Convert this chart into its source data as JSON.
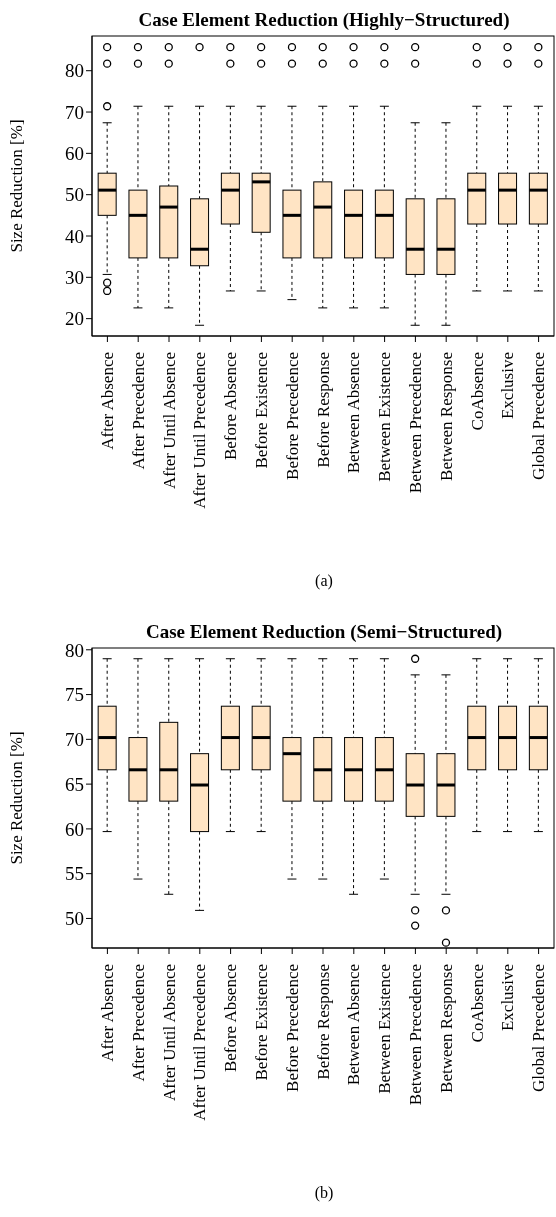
{
  "chart_data": [
    {
      "type": "box",
      "title": "Case Element Reduction (Highly−Structured)",
      "ylabel": "Size Reduction [%]",
      "color": "#ffe4c4",
      "annotations": [
        "(a)"
      ],
      "categories": [
        "After Absence",
        "After Precedence",
        "After Until Absence",
        "After Until Precedence",
        "Before Absence",
        "Before Existence",
        "Before Precedence",
        "Before Response",
        "Between Absence",
        "Between Existence",
        "Between Precedence",
        "Between Response",
        "CoAbsence",
        "Exclusive",
        "Global Precedence"
      ],
      "ylim": [
        15.8,
        88.4
      ],
      "yticks": [
        20,
        30,
        40,
        50,
        60,
        70,
        80
      ],
      "boxes": [
        {
          "low": 30.7,
          "q1": 45.0,
          "median": 51.1,
          "q3": 55.2,
          "high": 67.4,
          "outliers": [
            85.7,
            81.7,
            71.4,
            28.7,
            26.7
          ]
        },
        {
          "low": 22.6,
          "q1": 34.7,
          "median": 45.0,
          "q3": 51.1,
          "high": 71.4,
          "outliers": [
            85.7,
            81.7
          ]
        },
        {
          "low": 22.6,
          "q1": 34.7,
          "median": 47.0,
          "q3": 52.1,
          "high": 71.4,
          "outliers": [
            85.7,
            81.7
          ]
        },
        {
          "low": 18.4,
          "q1": 32.8,
          "median": 36.8,
          "q3": 49.0,
          "high": 71.4,
          "outliers": [
            85.7
          ]
        },
        {
          "low": 26.7,
          "q1": 42.9,
          "median": 51.1,
          "q3": 55.2,
          "high": 71.4,
          "outliers": [
            85.7,
            81.7
          ]
        },
        {
          "low": 26.7,
          "q1": 40.9,
          "median": 53.1,
          "q3": 55.2,
          "high": 71.4,
          "outliers": [
            85.7,
            81.7
          ]
        },
        {
          "low": 24.6,
          "q1": 34.7,
          "median": 45.0,
          "q3": 51.1,
          "high": 71.4,
          "outliers": [
            85.7,
            81.7
          ]
        },
        {
          "low": 22.6,
          "q1": 34.7,
          "median": 47.0,
          "q3": 53.1,
          "high": 71.4,
          "outliers": [
            85.7,
            81.7
          ]
        },
        {
          "low": 22.6,
          "q1": 34.7,
          "median": 45.0,
          "q3": 51.1,
          "high": 71.4,
          "outliers": [
            85.7,
            81.7
          ]
        },
        {
          "low": 22.6,
          "q1": 34.7,
          "median": 45.0,
          "q3": 51.1,
          "high": 71.4,
          "outliers": [
            85.7,
            81.7
          ]
        },
        {
          "low": 18.4,
          "q1": 30.7,
          "median": 36.8,
          "q3": 49.0,
          "high": 67.4,
          "outliers": [
            85.7,
            81.7
          ]
        },
        {
          "low": 18.4,
          "q1": 30.7,
          "median": 36.8,
          "q3": 49.0,
          "high": 67.4
        },
        {
          "low": 26.7,
          "q1": 42.9,
          "median": 51.1,
          "q3": 55.2,
          "high": 71.4,
          "outliers": [
            85.7,
            81.7
          ]
        },
        {
          "low": 26.7,
          "q1": 42.9,
          "median": 51.1,
          "q3": 55.2,
          "high": 71.4,
          "outliers": [
            85.7,
            81.7
          ]
        },
        {
          "low": 26.7,
          "q1": 42.9,
          "median": 51.1,
          "q3": 55.2,
          "high": 71.4,
          "outliers": [
            85.7,
            81.7
          ]
        }
      ]
    },
    {
      "type": "box",
      "title": "Case Element Reduction (Semi−Structured)",
      "ylabel": "Size Reduction [%]",
      "color": "#ffe4c4",
      "annotations": [
        "(b)"
      ],
      "categories": [
        "After Absence",
        "After Precedence",
        "After Until Absence",
        "After Until Precedence",
        "Before Absence",
        "Before Existence",
        "Before Precedence",
        "Before Response",
        "Between Absence",
        "Between Existence",
        "Between Precedence",
        "Between Response",
        "CoAbsence",
        "Exclusive",
        "Global Precedence"
      ],
      "ylim": [
        46.7,
        80.2
      ],
      "yticks": [
        50,
        55,
        60,
        65,
        70,
        75,
        80
      ],
      "boxes": [
        {
          "low": 59.7,
          "q1": 66.6,
          "median": 70.2,
          "q3": 73.7,
          "high": 79.0
        },
        {
          "low": 54.4,
          "q1": 63.1,
          "median": 66.6,
          "q3": 70.2,
          "high": 79.0
        },
        {
          "low": 52.7,
          "q1": 63.1,
          "median": 66.6,
          "q3": 71.9,
          "high": 79.0
        },
        {
          "low": 50.9,
          "q1": 59.7,
          "median": 64.9,
          "q3": 68.4,
          "high": 79.0
        },
        {
          "low": 59.7,
          "q1": 66.6,
          "median": 70.2,
          "q3": 73.7,
          "high": 79.0
        },
        {
          "low": 59.7,
          "q1": 66.6,
          "median": 70.2,
          "q3": 73.7,
          "high": 79.0
        },
        {
          "low": 54.4,
          "q1": 63.1,
          "median": 68.4,
          "q3": 70.2,
          "high": 79.0
        },
        {
          "low": 54.4,
          "q1": 63.1,
          "median": 66.6,
          "q3": 70.2,
          "high": 79.0
        },
        {
          "low": 52.7,
          "q1": 63.1,
          "median": 66.6,
          "q3": 70.2,
          "high": 79.0
        },
        {
          "low": 54.4,
          "q1": 63.1,
          "median": 66.6,
          "q3": 70.2,
          "high": 79.0
        },
        {
          "low": 52.7,
          "q1": 61.4,
          "median": 64.9,
          "q3": 68.4,
          "high": 77.2,
          "outliers": [
            79.0,
            50.9,
            49.2
          ]
        },
        {
          "low": 52.7,
          "q1": 61.4,
          "median": 64.9,
          "q3": 68.4,
          "high": 77.2,
          "outliers": [
            50.9,
            47.3
          ]
        },
        {
          "low": 59.7,
          "q1": 66.6,
          "median": 70.2,
          "q3": 73.7,
          "high": 79.0
        },
        {
          "low": 59.7,
          "q1": 66.6,
          "median": 70.2,
          "q3": 73.7,
          "high": 79.0
        },
        {
          "low": 59.7,
          "q1": 66.6,
          "median": 70.2,
          "q3": 73.7,
          "high": 79.0
        }
      ]
    }
  ]
}
